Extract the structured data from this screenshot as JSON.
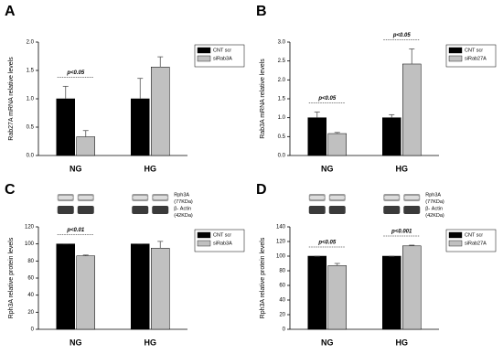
{
  "chart_data": [
    {
      "type": "bar",
      "panel": "A",
      "ylabel": "Rab27A mRNA relative levels",
      "categories": [
        "NG",
        "HG"
      ],
      "series": [
        {
          "name": "CNT scr",
          "color": "#000000",
          "values": [
            1.0,
            1.0
          ],
          "errors": [
            0.22,
            0.36
          ]
        },
        {
          "name": "siRab3A",
          "color": "#c0c0c0",
          "values": [
            0.33,
            1.56
          ],
          "errors": [
            0.11,
            0.18
          ]
        }
      ],
      "ylim": [
        0,
        2.0
      ],
      "yticks": [
        {
          "value": 0,
          "label": "0.0"
        },
        {
          "value": 0.5,
          "label": "0.5"
        },
        {
          "value": 1,
          "label": "1.0"
        },
        {
          "value": 1.5,
          "label": "1.5"
        },
        {
          "value": 2,
          "label": "2.0"
        }
      ],
      "annotations": [
        {
          "text": "p<0.05",
          "x": "NG"
        }
      ],
      "legend": "upper right"
    },
    {
      "type": "bar",
      "panel": "B",
      "ylabel": "Rab3A mRNA relative levels",
      "categories": [
        "NG",
        "HG"
      ],
      "series": [
        {
          "name": "CNT scr",
          "color": "#000000",
          "values": [
            1.0,
            1.0
          ],
          "errors": [
            0.15,
            0.08
          ]
        },
        {
          "name": "siRab27A",
          "color": "#c0c0c0",
          "values": [
            0.58,
            2.42
          ],
          "errors": [
            0.03,
            0.4
          ]
        }
      ],
      "ylim": [
        0,
        3.0
      ],
      "yticks": [
        {
          "value": 0,
          "label": "0.0"
        },
        {
          "value": 0.5,
          "label": "0.5"
        },
        {
          "value": 1,
          "label": "1.0"
        },
        {
          "value": 1.5,
          "label": "1.5"
        },
        {
          "value": 2,
          "label": "2.0"
        },
        {
          "value": 2.5,
          "label": "2.5"
        },
        {
          "value": 3,
          "label": "3.0"
        }
      ],
      "annotations": [
        {
          "text": "p<0.05",
          "x": "NG"
        },
        {
          "text": "p<0.05",
          "x": "HG"
        }
      ],
      "legend": "upper right"
    },
    {
      "type": "bar",
      "panel": "C",
      "ylabel": "Rph3A relative protein levels",
      "categories": [
        "NG",
        "HG"
      ],
      "series": [
        {
          "name": "CNT scr",
          "color": "#000000",
          "values": [
            100,
            100
          ],
          "errors": [
            0,
            0
          ]
        },
        {
          "name": "siRab3A",
          "color": "#c0c0c0",
          "values": [
            86,
            95
          ],
          "errors": [
            1,
            8
          ]
        }
      ],
      "ylim": [
        0,
        120
      ],
      "yticks": [
        0,
        20,
        40,
        60,
        80,
        100,
        120
      ],
      "annotations": [
        {
          "text": "p<0.01",
          "x": "NG"
        }
      ],
      "legend": "upper right",
      "blot_labels": [
        "Rph3A",
        "(77KDa)",
        "β- Actin",
        "(42KDa)"
      ]
    },
    {
      "type": "bar",
      "panel": "D",
      "ylabel": "Rph3A relative protein levels",
      "categories": [
        "NG",
        "HG"
      ],
      "series": [
        {
          "name": "CNT scr",
          "color": "#000000",
          "values": [
            100,
            100
          ],
          "errors": [
            0,
            0
          ]
        },
        {
          "name": "siRab27A",
          "color": "#c0c0c0",
          "values": [
            87,
            114
          ],
          "errors": [
            3,
            1
          ]
        }
      ],
      "ylim": [
        0,
        140
      ],
      "yticks": [
        0,
        20,
        40,
        60,
        80,
        100,
        120,
        140
      ],
      "annotations": [
        {
          "text": "p<0.05",
          "x": "NG"
        },
        {
          "text": "p<0.001",
          "x": "HG"
        }
      ],
      "legend": "upper right",
      "blot_labels": [
        "Rph3A",
        "(77KDa)",
        "β- Actin",
        "(42KDa)"
      ]
    }
  ]
}
